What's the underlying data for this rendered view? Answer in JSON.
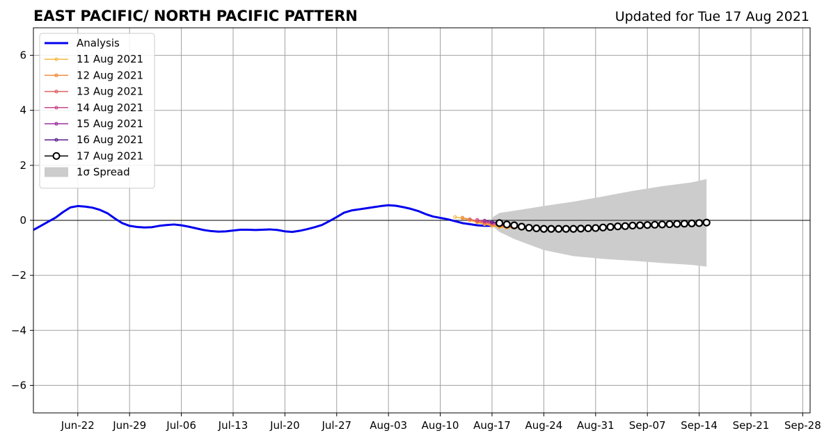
{
  "chart_data": {
    "type": "line",
    "title": "EAST PACIFIC/ NORTH PACIFIC PATTERN",
    "subtitle": "Updated for Tue 17 Aug 2021",
    "xlabel": "",
    "ylabel": "",
    "xlim": [
      "2021-06-16",
      "2021-09-29"
    ],
    "ylim": [
      -7,
      7
    ],
    "grid": true,
    "legend_position": "top-left",
    "x_tick_labels": [
      "Jun-22",
      "Jun-29",
      "Jul-06",
      "Jul-13",
      "Jul-20",
      "Jul-27",
      "Aug-03",
      "Aug-10",
      "Aug-17",
      "Aug-24",
      "Aug-31",
      "Sep-07",
      "Sep-14",
      "Sep-21",
      "Sep-28"
    ],
    "x_tick_dates": [
      "2021-06-22",
      "2021-06-29",
      "2021-07-06",
      "2021-07-13",
      "2021-07-20",
      "2021-07-27",
      "2021-08-03",
      "2021-08-10",
      "2021-08-17",
      "2021-08-24",
      "2021-08-31",
      "2021-09-07",
      "2021-09-14",
      "2021-09-21",
      "2021-09-28"
    ],
    "y_ticks": [
      -6,
      -4,
      -2,
      0,
      2,
      4,
      6
    ],
    "y_tick_labels": [
      "−6",
      "−4",
      "−2",
      "0",
      "2",
      "4",
      "6"
    ],
    "analysis": {
      "name": "Analysis",
      "color": "#0000ee",
      "x": [
        "2021-06-16",
        "2021-06-17",
        "2021-06-18",
        "2021-06-19",
        "2021-06-20",
        "2021-06-21",
        "2021-06-22",
        "2021-06-23",
        "2021-06-24",
        "2021-06-25",
        "2021-06-26",
        "2021-06-27",
        "2021-06-28",
        "2021-06-29",
        "2021-06-30",
        "2021-07-01",
        "2021-07-02",
        "2021-07-03",
        "2021-07-04",
        "2021-07-05",
        "2021-07-06",
        "2021-07-07",
        "2021-07-08",
        "2021-07-09",
        "2021-07-10",
        "2021-07-11",
        "2021-07-12",
        "2021-07-13",
        "2021-07-14",
        "2021-07-15",
        "2021-07-16",
        "2021-07-17",
        "2021-07-18",
        "2021-07-19",
        "2021-07-20",
        "2021-07-21",
        "2021-07-22",
        "2021-07-23",
        "2021-07-24",
        "2021-07-25",
        "2021-07-26",
        "2021-07-27",
        "2021-07-28",
        "2021-07-29",
        "2021-07-30",
        "2021-07-31",
        "2021-08-01",
        "2021-08-02",
        "2021-08-03",
        "2021-08-04",
        "2021-08-05",
        "2021-08-06",
        "2021-08-07",
        "2021-08-08",
        "2021-08-09",
        "2021-08-10",
        "2021-08-11",
        "2021-08-12",
        "2021-08-13",
        "2021-08-14",
        "2021-08-15",
        "2021-08-16",
        "2021-08-17"
      ],
      "y": [
        -0.35,
        -0.2,
        -0.05,
        0.1,
        0.3,
        0.47,
        0.52,
        0.5,
        0.46,
        0.38,
        0.26,
        0.07,
        -0.1,
        -0.2,
        -0.24,
        -0.26,
        -0.25,
        -0.2,
        -0.17,
        -0.15,
        -0.18,
        -0.23,
        -0.29,
        -0.35,
        -0.39,
        -0.41,
        -0.4,
        -0.37,
        -0.34,
        -0.34,
        -0.35,
        -0.34,
        -0.33,
        -0.35,
        -0.4,
        -0.42,
        -0.38,
        -0.32,
        -0.25,
        -0.17,
        -0.03,
        0.12,
        0.28,
        0.36,
        0.4,
        0.44,
        0.48,
        0.52,
        0.55,
        0.53,
        0.48,
        0.42,
        0.34,
        0.23,
        0.14,
        0.09,
        0.04,
        -0.03,
        -0.1,
        -0.14,
        -0.18,
        -0.2,
        -0.2
      ]
    },
    "spread": {
      "name": "1σ Spread",
      "color": "#cccccc",
      "x": [
        "2021-08-17",
        "2021-08-18",
        "2021-08-20",
        "2021-08-24",
        "2021-08-28",
        "2021-09-01",
        "2021-09-05",
        "2021-09-09",
        "2021-09-13",
        "2021-09-15"
      ],
      "upper": [
        0.1,
        0.27,
        0.35,
        0.52,
        0.68,
        0.87,
        1.07,
        1.24,
        1.38,
        1.5
      ],
      "lower": [
        -0.2,
        -0.42,
        -0.68,
        -1.08,
        -1.3,
        -1.4,
        -1.47,
        -1.55,
        -1.62,
        -1.68
      ]
    },
    "series": [
      {
        "name": "11 Aug 2021",
        "color": "#f4b843",
        "x": [
          "2021-08-12",
          "2021-08-13",
          "2021-08-14",
          "2021-08-15",
          "2021-08-16",
          "2021-08-17",
          "2021-08-18",
          "2021-08-19",
          "2021-08-20",
          "2021-08-21",
          "2021-08-22",
          "2021-08-23"
        ],
        "y": [
          0.12,
          0.08,
          0.0,
          -0.08,
          -0.14,
          -0.2,
          -0.25,
          -0.27,
          -0.27,
          -0.27,
          -0.26,
          -0.26
        ]
      },
      {
        "name": "12 Aug 2021",
        "color": "#ef8a3d",
        "x": [
          "2021-08-13",
          "2021-08-14",
          "2021-08-15",
          "2021-08-16",
          "2021-08-17",
          "2021-08-18",
          "2021-08-19",
          "2021-08-20",
          "2021-08-21",
          "2021-08-22",
          "2021-08-23",
          "2021-08-24"
        ],
        "y": [
          0.1,
          0.03,
          -0.05,
          -0.12,
          -0.18,
          -0.22,
          -0.25,
          -0.27,
          -0.28,
          -0.28,
          -0.28,
          -0.27
        ]
      },
      {
        "name": "13 Aug 2021",
        "color": "#e06060",
        "x": [
          "2021-08-14",
          "2021-08-15",
          "2021-08-16",
          "2021-08-17",
          "2021-08-18",
          "2021-08-19",
          "2021-08-20",
          "2021-08-21",
          "2021-08-22",
          "2021-08-23",
          "2021-08-24",
          "2021-08-25"
        ],
        "y": [
          0.04,
          -0.02,
          -0.08,
          -0.13,
          -0.18,
          -0.22,
          -0.24,
          -0.26,
          -0.27,
          -0.27,
          -0.27,
          -0.27
        ]
      },
      {
        "name": "14 Aug 2021",
        "color": "#c8478a",
        "x": [
          "2021-08-15",
          "2021-08-16",
          "2021-08-17",
          "2021-08-18",
          "2021-08-19",
          "2021-08-20",
          "2021-08-21",
          "2021-08-22",
          "2021-08-23",
          "2021-08-24",
          "2021-08-25",
          "2021-08-26"
        ],
        "y": [
          0.02,
          -0.04,
          -0.1,
          -0.15,
          -0.19,
          -0.22,
          -0.24,
          -0.26,
          -0.27,
          -0.27,
          -0.28,
          -0.28
        ]
      },
      {
        "name": "15 Aug 2021",
        "color": "#9a2fa0",
        "x": [
          "2021-08-16",
          "2021-08-17",
          "2021-08-18",
          "2021-08-19",
          "2021-08-20",
          "2021-08-21",
          "2021-08-22",
          "2021-08-23",
          "2021-08-24",
          "2021-08-25",
          "2021-08-26",
          "2021-08-27"
        ],
        "y": [
          -0.01,
          -0.06,
          -0.11,
          -0.16,
          -0.2,
          -0.23,
          -0.25,
          -0.27,
          -0.28,
          -0.28,
          -0.29,
          -0.29
        ]
      },
      {
        "name": "16 Aug 2021",
        "color": "#5a1a8c",
        "x": [
          "2021-08-17",
          "2021-08-18",
          "2021-08-19",
          "2021-08-20",
          "2021-08-21",
          "2021-08-22",
          "2021-08-23",
          "2021-08-24",
          "2021-08-25",
          "2021-08-26",
          "2021-08-27",
          "2021-08-28"
        ],
        "y": [
          -0.06,
          -0.1,
          -0.14,
          -0.18,
          -0.22,
          -0.25,
          -0.27,
          -0.28,
          -0.29,
          -0.29,
          -0.29,
          -0.29
        ]
      },
      {
        "name": "17 Aug 2021",
        "color": "#000000",
        "x": [
          "2021-08-18",
          "2021-08-19",
          "2021-08-20",
          "2021-08-21",
          "2021-08-22",
          "2021-08-23",
          "2021-08-24",
          "2021-08-25",
          "2021-08-26",
          "2021-08-27",
          "2021-08-28",
          "2021-08-29",
          "2021-08-30",
          "2021-08-31",
          "2021-09-01",
          "2021-09-02",
          "2021-09-03",
          "2021-09-04",
          "2021-09-05",
          "2021-09-06",
          "2021-09-07",
          "2021-09-08",
          "2021-09-09",
          "2021-09-10",
          "2021-09-11",
          "2021-09-12",
          "2021-09-13",
          "2021-09-14",
          "2021-09-15"
        ],
        "y": [
          -0.1,
          -0.15,
          -0.18,
          -0.23,
          -0.27,
          -0.29,
          -0.31,
          -0.31,
          -0.31,
          -0.31,
          -0.31,
          -0.3,
          -0.29,
          -0.28,
          -0.26,
          -0.24,
          -0.22,
          -0.21,
          -0.19,
          -0.18,
          -0.17,
          -0.16,
          -0.15,
          -0.14,
          -0.13,
          -0.12,
          -0.11,
          -0.1,
          -0.08
        ]
      }
    ]
  }
}
